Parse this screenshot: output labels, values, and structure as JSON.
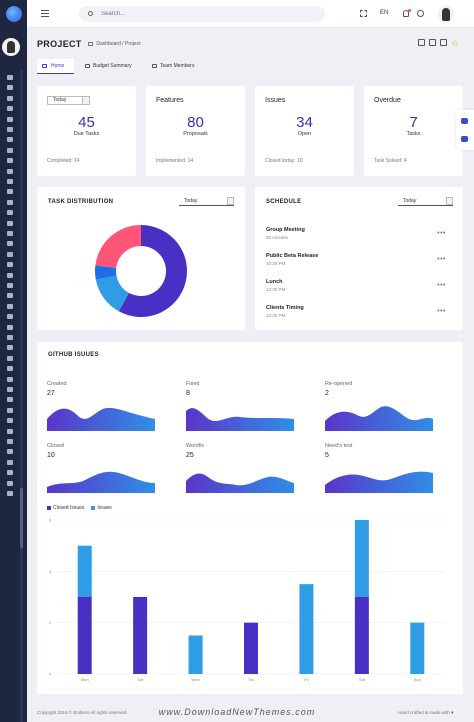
{
  "topbar": {
    "search_placeholder": "Search...",
    "language": "EN"
  },
  "page": {
    "title": "PROJECT",
    "breadcrumb": [
      "Dashboard",
      "Project"
    ]
  },
  "tabs": [
    {
      "label": "Home",
      "active": true
    },
    {
      "label": "Budget Summary",
      "active": false
    },
    {
      "label": "Team Members",
      "active": false
    }
  ],
  "stats": [
    {
      "select": "Today",
      "value": "45",
      "label": "Due Tasks",
      "foot": "Completed: 14"
    },
    {
      "title": "Features",
      "value": "80",
      "label": "Proposals",
      "foot": "Implemented: 14"
    },
    {
      "title": "Issues",
      "value": "34",
      "label": "Open",
      "foot": "Closed today: 10"
    },
    {
      "title": "Overdue",
      "value": "7",
      "label": "Tasks",
      "foot": "Task Solved: 4"
    }
  ],
  "task_distribution": {
    "title": "TASK DISTRIBUTION",
    "select": "Today"
  },
  "schedule": {
    "title": "SCHEDULE",
    "select": "Today",
    "items": [
      {
        "title": "Group Meeting",
        "time": "30 minutes"
      },
      {
        "title": "Public Beta Release",
        "time": "10:30 PM"
      },
      {
        "title": "Lunch",
        "time": "12:30 PM"
      },
      {
        "title": "Clients Timing",
        "time": "12:30 PM"
      }
    ]
  },
  "github": {
    "title": "GITHUB ISUUES",
    "stats": [
      {
        "label": "Created",
        "value": "27"
      },
      {
        "label": "Fixed",
        "value": "8"
      },
      {
        "label": "Re-opened",
        "value": "2"
      },
      {
        "label": "Closed",
        "value": "10"
      },
      {
        "label": "Wontfix",
        "value": "25"
      },
      {
        "label": "Need's test",
        "value": "5"
      }
    ]
  },
  "colors": {
    "accent": "#3a2fb0",
    "donut": [
      "#4a2fc4",
      "#2f9ce6",
      "#1e6fe6",
      "#ff5577"
    ],
    "closed": "#4a2fc4",
    "issues": "#2f9ce6"
  },
  "chart_data": [
    {
      "type": "pie",
      "variant": "donut",
      "values": [
        58,
        14,
        5,
        23
      ],
      "colors": [
        "#4a2fc4",
        "#2f9ce6",
        "#1e6fe6",
        "#ff5577"
      ]
    },
    {
      "type": "bar",
      "stacked": true,
      "categories": [
        "Mon",
        "Tue",
        "Wed",
        "Thu",
        "Fri",
        "Sat",
        "Sun"
      ],
      "series": [
        {
          "name": "Closed Issues",
          "values": [
            3,
            3,
            0,
            2,
            0,
            3,
            0
          ]
        },
        {
          "name": "Issues",
          "values": [
            2,
            0,
            1.5,
            0,
            3.5,
            3,
            2
          ]
        }
      ],
      "ylim": [
        0,
        6
      ],
      "yticks": [
        0,
        2,
        4,
        6
      ],
      "legend": "top-left"
    }
  ],
  "footer": {
    "copyright": "Copyright 2019 © Endless All rights reserved.",
    "made_with": "Hand crafted & made with",
    "heart": "♥",
    "watermark": "www.DownloadNewThemes.com"
  }
}
